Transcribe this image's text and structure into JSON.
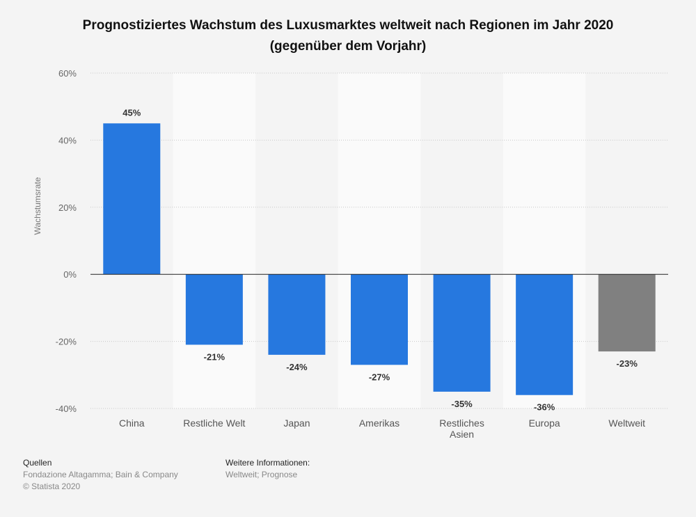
{
  "chart_data": {
    "type": "bar",
    "title": "Prognostiziertes Wachstum des Luxusmarktes weltweit nach Regionen im Jahr 2020 (gegenüber dem Vorjahr)",
    "xlabel": "",
    "ylabel": "Wachstumsrate",
    "ylim": [
      -40,
      60
    ],
    "yticks": [
      -40,
      -20,
      0,
      20,
      40,
      60
    ],
    "ytick_labels": [
      "-40%",
      "-20%",
      "0%",
      "20%",
      "40%",
      "60%"
    ],
    "grid": true,
    "categories": [
      "China",
      "Restliche Welt",
      "Japan",
      "Amerikas",
      "Restliches Asien",
      "Europa",
      "Weltweit"
    ],
    "values": [
      45,
      -21,
      -24,
      -27,
      -35,
      -36,
      -23
    ],
    "data_labels": [
      "45%",
      "-21%",
      "-24%",
      "-27%",
      "-35%",
      "-36%",
      "-23%"
    ],
    "colors": [
      "#2678df",
      "#2678df",
      "#2678df",
      "#2678df",
      "#2678df",
      "#2678df",
      "#808080"
    ]
  },
  "footer": {
    "sources_heading": "Quellen",
    "sources": "Fondazione Altagamma; Bain & Company",
    "copyright": "© Statista 2020",
    "info_heading": "Weitere Informationen:",
    "info": "Weltweit; Prognose"
  }
}
